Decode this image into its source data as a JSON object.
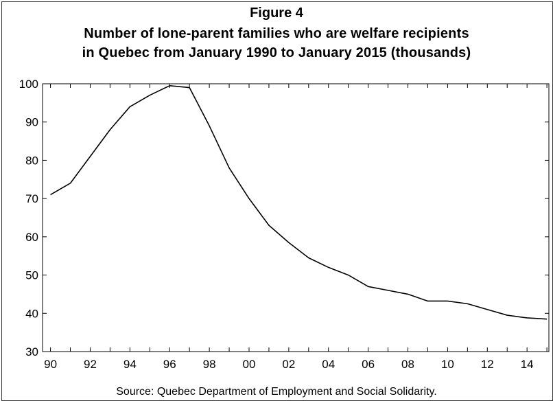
{
  "chart_data": {
    "type": "line",
    "figure_label": "Figure 4",
    "title_line_1": "Number of lone-parent families who are welfare recipients",
    "title_line_2": "in Quebec from January 1990 to January 2015 (thousands)",
    "source": "Source: Quebec Department of Employment and Social Solidarity.",
    "xlabel": "",
    "ylabel": "",
    "ylim": [
      30,
      100
    ],
    "xlim": [
      1989.6,
      2015.1
    ],
    "y_ticks": [
      30,
      40,
      50,
      60,
      70,
      80,
      90,
      100
    ],
    "x_ticks": [
      {
        "value": 1990,
        "label": "90"
      },
      {
        "value": 1992,
        "label": "92"
      },
      {
        "value": 1994,
        "label": "94"
      },
      {
        "value": 1996,
        "label": "96"
      },
      {
        "value": 1998,
        "label": "98"
      },
      {
        "value": 2000,
        "label": "00"
      },
      {
        "value": 2002,
        "label": "02"
      },
      {
        "value": 2004,
        "label": "04"
      },
      {
        "value": 2006,
        "label": "06"
      },
      {
        "value": 2008,
        "label": "08"
      },
      {
        "value": 2010,
        "label": "10"
      },
      {
        "value": 2012,
        "label": "12"
      },
      {
        "value": 2014,
        "label": "14"
      }
    ],
    "grid": false,
    "line_color": "#000000",
    "series": [
      {
        "x": [
          1990,
          1991,
          1992,
          1993,
          1994,
          1995,
          1996,
          1997,
          1998,
          1999,
          2000,
          2001,
          2002,
          2003,
          2004,
          2005,
          2006,
          2007,
          2008,
          2009,
          2010,
          2011,
          2012,
          2013,
          2014,
          2015
        ],
        "y": [
          71.0,
          74.0,
          81.0,
          88.0,
          94.0,
          97.0,
          99.5,
          99.0,
          89.0,
          78.0,
          70.0,
          63.0,
          58.5,
          54.5,
          52.0,
          50.0,
          47.0,
          46.0,
          45.0,
          43.2,
          43.2,
          42.5,
          41.0,
          39.5,
          38.8,
          38.5
        ]
      }
    ]
  }
}
